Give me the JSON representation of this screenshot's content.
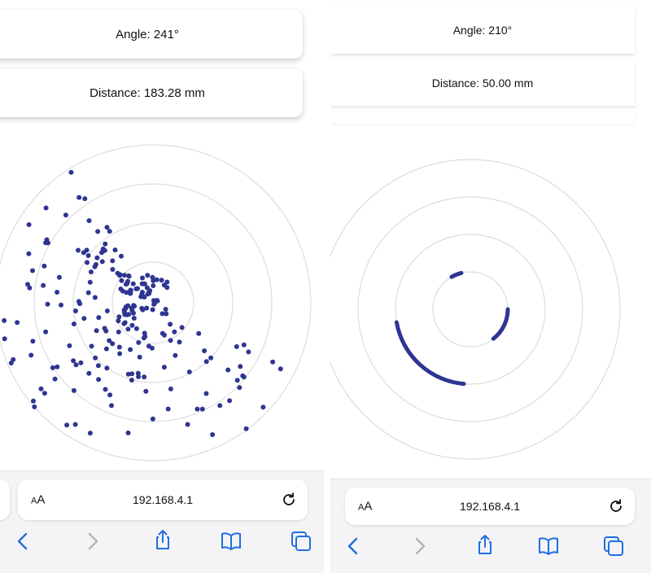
{
  "left": {
    "angle_label": "Angle: 241°",
    "distance_label": "Distance: 183.28 mm",
    "url": "192.168.4.1",
    "aa_label": "AA"
  },
  "right": {
    "angle_label": "Angle: 210°",
    "distance_label": "Distance: 50.00 mm",
    "url": "192.168.4.1",
    "aa_label": "AA"
  },
  "colors": {
    "accent": "#2e3592",
    "ring": "#dcdcdc",
    "toolbar_bg": "#f4f4f6",
    "nav_blue": "#1f6fe0",
    "nav_disabled": "#b5b5b5"
  },
  "icons": [
    "back-chevron-icon",
    "forward-chevron-icon",
    "share-icon",
    "bookmarks-icon",
    "tabs-icon",
    "reload-icon"
  ]
}
